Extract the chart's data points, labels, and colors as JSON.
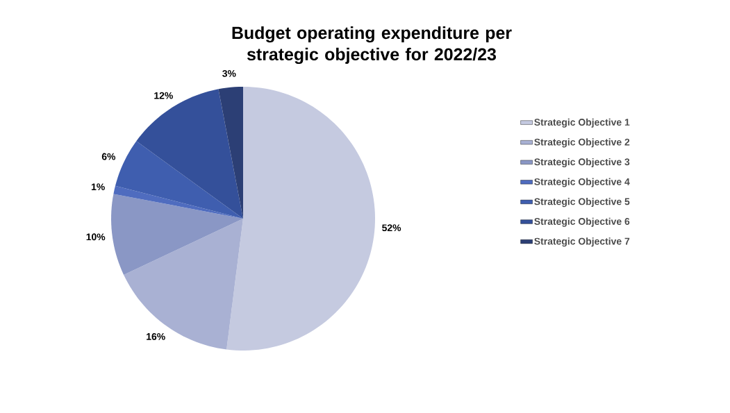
{
  "chart_data": {
    "type": "pie",
    "title": "Budget operating expenditure per strategic objective for 2022/23",
    "categories": [
      "Strategic Objective 1",
      "Strategic Objective 2",
      "Strategic Objective 3",
      "Strategic Objective 4",
      "Strategic Objective 5",
      "Strategic Objective 6",
      "Strategic Objective 7"
    ],
    "values": [
      52,
      16,
      10,
      1,
      6,
      12,
      3
    ],
    "value_labels": [
      "52%",
      "16%",
      "10%",
      "1%",
      "6%",
      "12%",
      "3%"
    ],
    "colors": [
      "#c5cae0",
      "#a9b1d3",
      "#8a97c5",
      "#4f6cbf",
      "#3f5eaf",
      "#34509a",
      "#2c3f75"
    ],
    "legend": "right"
  }
}
